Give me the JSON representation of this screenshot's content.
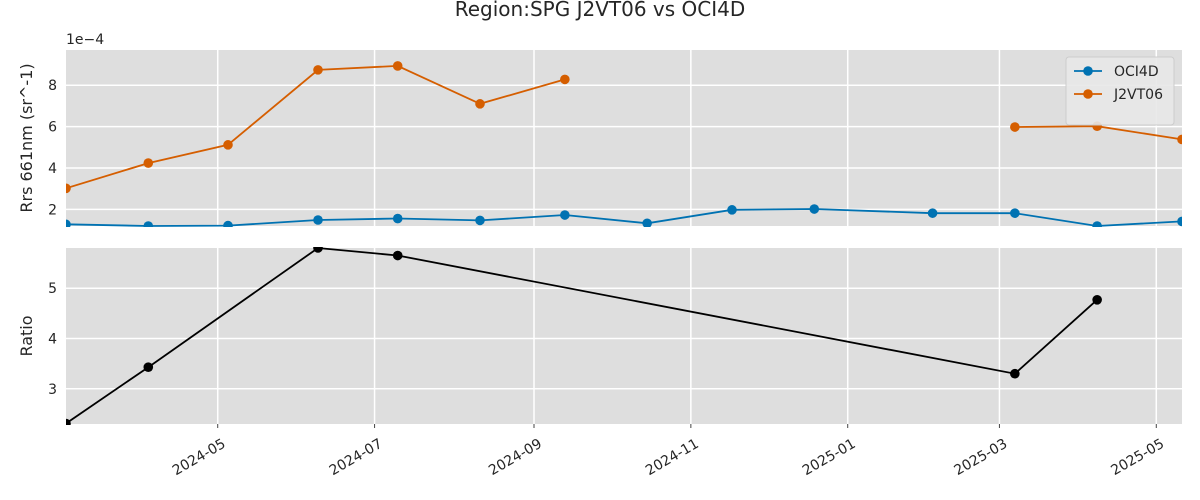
{
  "chart_data": {
    "type": "line",
    "title": "Region:SPG J2VT06 vs OCI4D",
    "panels": [
      {
        "ylabel": "Rrs 661nm (sr^-1)",
        "y_offset_label": "1e−4",
        "ylim": [
          1.2,
          9.7
        ],
        "yticks": [
          2,
          4,
          6,
          8
        ],
        "legend_position": "upper-right",
        "grid": true,
        "series": [
          {
            "name": "OCI4D",
            "color": "#0072B2",
            "x": [
              "2024-03-03",
              "2024-04-04",
              "2024-05-05",
              "2024-06-09",
              "2024-07-10",
              "2024-08-11",
              "2024-09-13",
              "2024-10-15",
              "2024-11-17",
              "2024-12-19",
              "2025-02-03",
              "2025-03-07",
              "2025-04-08",
              "2025-05-11"
            ],
            "y": [
              1.28,
              1.2,
              1.22,
              1.49,
              1.56,
              1.47,
              1.73,
              1.33,
              1.98,
              2.02,
              1.82,
              1.82,
              1.2,
              1.42
            ]
          },
          {
            "name": "J2VT06",
            "color": "#D55E00",
            "x": [
              "2024-03-03",
              "2024-04-04",
              "2024-05-05",
              "2024-06-09",
              "2024-07-10",
              "2024-08-11",
              "2024-09-13",
              null,
              "2025-03-07",
              "2025-04-08",
              "2025-05-11"
            ],
            "y": [
              3.02,
              4.24,
              5.12,
              8.74,
              8.93,
              7.1,
              8.28,
              null,
              5.98,
              6.02,
              5.38
            ]
          }
        ]
      },
      {
        "ylabel": "Ratio",
        "ylim": [
          2.3,
          5.8
        ],
        "yticks": [
          3,
          4,
          5
        ],
        "grid": true,
        "series": [
          {
            "color": "#000000",
            "x": [
              "2024-03-03",
              "2024-04-04",
              "2024-06-09",
              "2024-07-10",
              "2025-03-07",
              "2025-04-08"
            ],
            "y": [
              2.31,
              3.43,
              5.8,
              5.65,
              3.3,
              4.77
            ]
          }
        ]
      }
    ],
    "x_range": [
      "2024-03-03",
      "2025-05-11"
    ],
    "xticks": [
      "2024-05",
      "2024-07",
      "2024-09",
      "2024-11",
      "2025-01",
      "2025-03",
      "2025-05"
    ],
    "grid_background": "#dedede",
    "grid_line_color": "#ffffff"
  }
}
